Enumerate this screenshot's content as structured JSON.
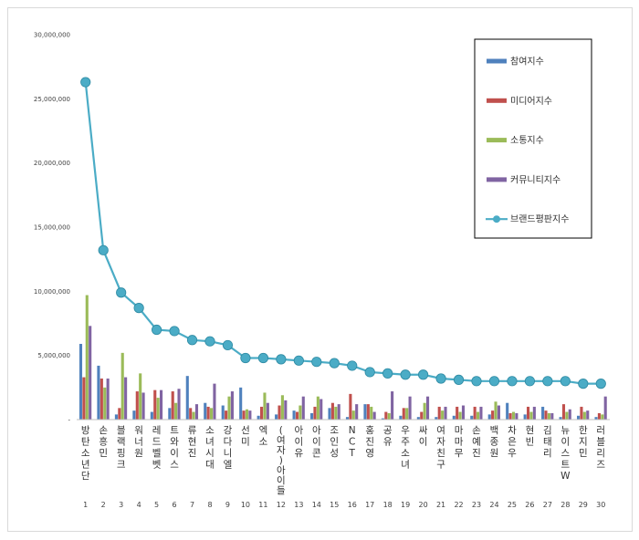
{
  "chart_data": {
    "type": "bar",
    "categories": [
      "방탄소년단",
      "손흥민",
      "블랙핑크",
      "워너원",
      "레드벨벳",
      "트와이스",
      "류현진",
      "소녀시대",
      "강다니엘",
      "선미",
      "엑소",
      "(여자)아이들",
      "아이유",
      "아이콘",
      "조인성",
      "NCT",
      "홍진영",
      "공유",
      "우주소녀",
      "싸이",
      "여자친구",
      "마마무",
      "손예진",
      "백종원",
      "차은우",
      "현빈",
      "김태리",
      "뉴이스트W",
      "한지민",
      "러블리즈"
    ],
    "ranks": [
      "1",
      "2",
      "3",
      "4",
      "5",
      "6",
      "7",
      "8",
      "9",
      "10",
      "11",
      "12",
      "13",
      "14",
      "15",
      "16",
      "17",
      "18",
      "19",
      "20",
      "21",
      "22",
      "23",
      "24",
      "25",
      "26",
      "27",
      "28",
      "29",
      "30"
    ],
    "ylim": [
      0,
      30000000
    ],
    "yticks": [
      "-",
      "5,000,000",
      "10,000,000",
      "15,000,000",
      "20,000,000",
      "25,000,000",
      "30,000,000"
    ],
    "legend_position": "top-right",
    "grid": false,
    "series": [
      {
        "name": "참여지수",
        "color": "#4f81bd",
        "kind": "bar",
        "values": [
          5900000,
          4200000,
          400000,
          700000,
          600000,
          900000,
          3400000,
          1300000,
          1100000,
          2500000,
          300000,
          400000,
          700000,
          500000,
          900000,
          200000,
          1200000,
          100000,
          300000,
          200000,
          200000,
          300000,
          300000,
          400000,
          1300000,
          400000,
          1000000,
          200000,
          300000,
          200000
        ]
      },
      {
        "name": "미디어지수",
        "color": "#c0504d",
        "kind": "bar",
        "values": [
          3300000,
          3200000,
          900000,
          2200000,
          2300000,
          2200000,
          900000,
          1000000,
          700000,
          700000,
          1000000,
          1100000,
          600000,
          1000000,
          1300000,
          2000000,
          1200000,
          600000,
          900000,
          600000,
          1000000,
          1000000,
          1000000,
          700000,
          500000,
          1000000,
          700000,
          1200000,
          1000000,
          500000
        ]
      },
      {
        "name": "소통지수",
        "color": "#9bbb59",
        "kind": "bar",
        "values": [
          9700000,
          2500000,
          5200000,
          3600000,
          1700000,
          1300000,
          600000,
          900000,
          1800000,
          800000,
          2100000,
          1900000,
          1100000,
          1800000,
          1000000,
          700000,
          1000000,
          500000,
          900000,
          1300000,
          700000,
          600000,
          600000,
          1400000,
          600000,
          600000,
          500000,
          600000,
          600000,
          400000
        ]
      },
      {
        "name": "커뮤니티지수",
        "color": "#8064a2",
        "kind": "bar",
        "values": [
          7300000,
          3200000,
          3300000,
          2100000,
          2300000,
          2400000,
          1200000,
          2800000,
          2200000,
          700000,
          1300000,
          1500000,
          1800000,
          1600000,
          1200000,
          1200000,
          600000,
          2200000,
          1800000,
          1800000,
          1000000,
          1100000,
          1000000,
          1100000,
          500000,
          1000000,
          500000,
          800000,
          700000,
          1800000
        ]
      },
      {
        "name": "브랜드평판지수",
        "color": "#4bacc6",
        "kind": "line",
        "values": [
          26300000,
          13200000,
          9900000,
          8700000,
          7000000,
          6900000,
          6200000,
          6100000,
          5800000,
          4800000,
          4800000,
          4700000,
          4600000,
          4500000,
          4400000,
          4200000,
          3700000,
          3600000,
          3500000,
          3500000,
          3200000,
          3100000,
          3000000,
          3000000,
          3000000,
          3000000,
          3000000,
          3000000,
          2800000,
          2800000
        ]
      }
    ]
  }
}
